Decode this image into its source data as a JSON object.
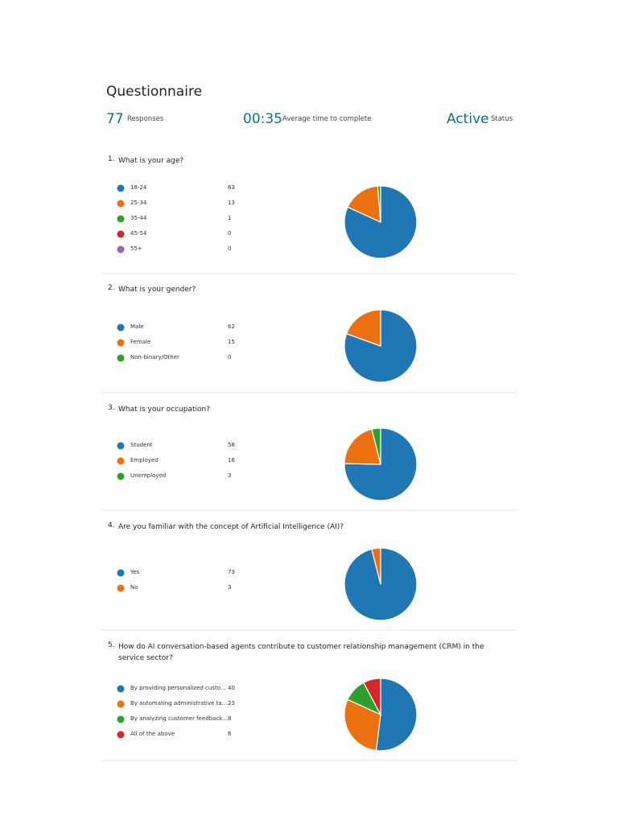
{
  "header": {
    "title": "Questionnaire",
    "stats": [
      {
        "value": "77",
        "label": "Responses"
      },
      {
        "value": "00:35",
        "label": "Average time to complete"
      },
      {
        "value": "Active",
        "label": "Status"
      }
    ]
  },
  "chart_data": [
    {
      "type": "pie",
      "number": "1.",
      "title": "What is your age?",
      "categories": [
        "18-24",
        "25-34",
        "35-44",
        "45-54",
        "55+"
      ],
      "values": [
        63,
        13,
        1,
        0,
        0
      ],
      "colors": [
        "#1f77b4",
        "#ed7010",
        "#2ca02c",
        "#d62728",
        "#9467bd"
      ]
    },
    {
      "type": "pie",
      "number": "2.",
      "title": "What is your gender?",
      "categories": [
        "Male",
        "Female",
        "Non-binary/Other"
      ],
      "values": [
        62,
        15,
        0
      ],
      "colors": [
        "#1f77b4",
        "#ed7010",
        "#2ca02c"
      ]
    },
    {
      "type": "pie",
      "number": "3.",
      "title": "What is your occupation?",
      "categories": [
        "Student",
        "Employed",
        "Unemployed"
      ],
      "values": [
        58,
        16,
        3
      ],
      "colors": [
        "#1f77b4",
        "#ed7010",
        "#2ca02c"
      ]
    },
    {
      "type": "pie",
      "number": "4.",
      "title": "Are you familiar with the concept of Artificial Intelligence (AI)?",
      "categories": [
        "Yes",
        "No"
      ],
      "values": [
        73,
        3
      ],
      "colors": [
        "#1f77b4",
        "#ed7010"
      ]
    },
    {
      "type": "pie",
      "number": "5.",
      "title": "How do AI conversation-based agents contribute to customer relationship management (CRM) in the service sector?",
      "categories": [
        "By providing personalized custo...",
        "By automating administrative ta...",
        "By analyzing customer feedback...",
        "All of the above"
      ],
      "values": [
        40,
        23,
        8,
        6
      ],
      "colors": [
        "#1f77b4",
        "#ed7010",
        "#2ca02c",
        "#d62728"
      ]
    }
  ]
}
